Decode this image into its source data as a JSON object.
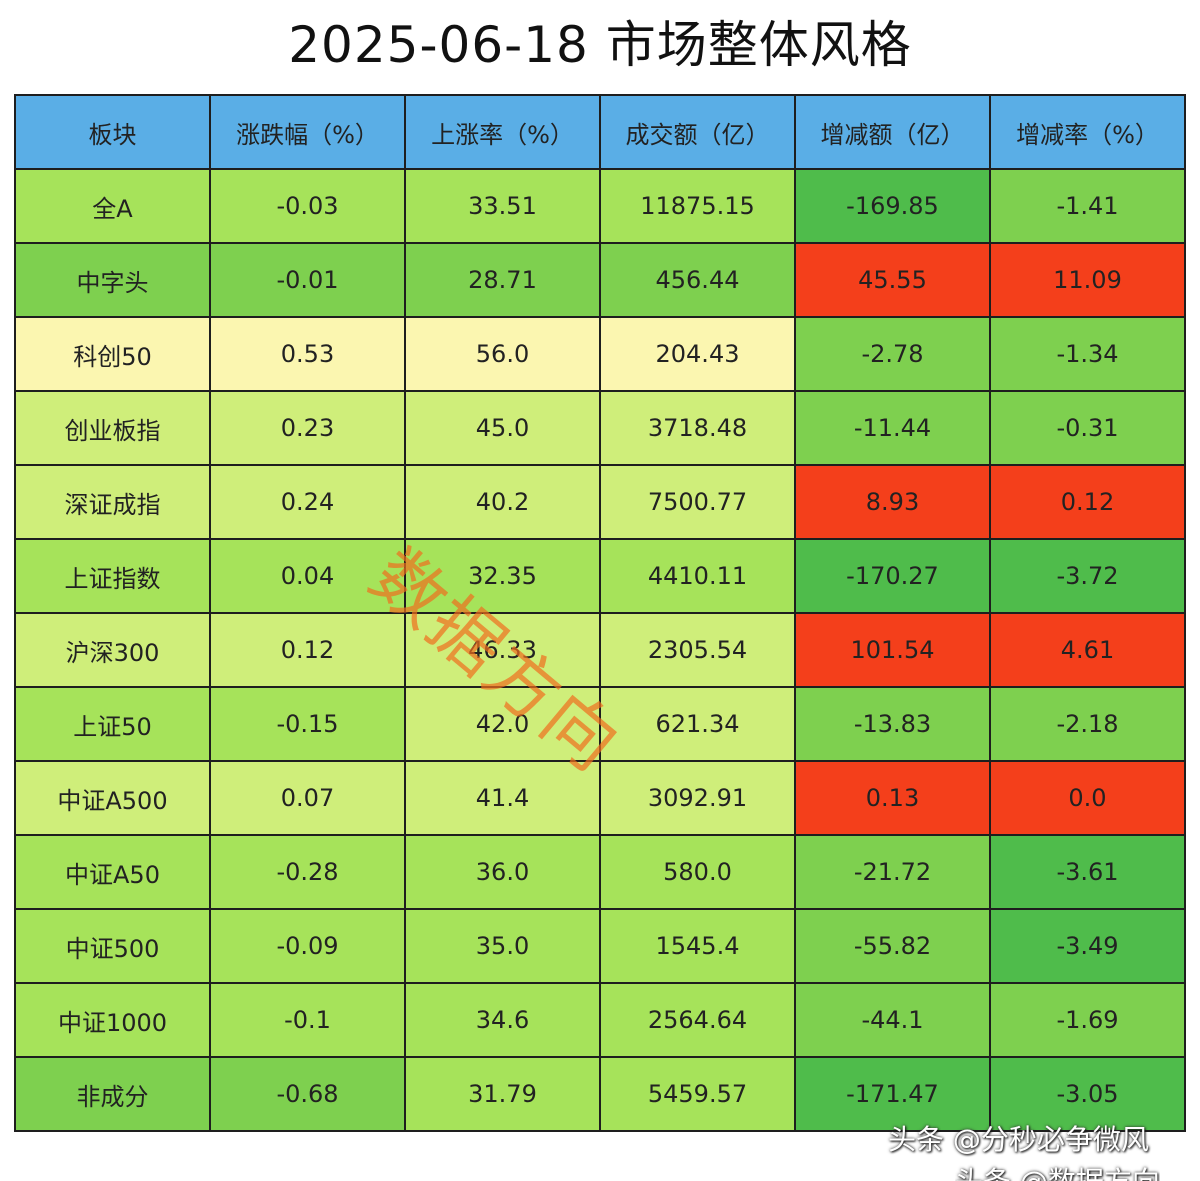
{
  "title": "2025-06-18 市场整体风格",
  "table": {
    "headers": [
      "板块",
      "涨跌幅（%）",
      "上涨率（%）",
      "成交额（亿）",
      "增减额（亿）",
      "增减率（%）"
    ],
    "rows": [
      {
        "cells": [
          "全A",
          "-0.03",
          "33.51",
          "11875.15",
          "-169.85",
          "-1.41"
        ],
        "colors": [
          "lgreen",
          "lgreen",
          "lgreen",
          "lgreen",
          "dgreen",
          "mgreen"
        ]
      },
      {
        "cells": [
          "中字头",
          "-0.01",
          "28.71",
          "456.44",
          "45.55",
          "11.09"
        ],
        "colors": [
          "mgreen",
          "mgreen",
          "mgreen",
          "mgreen",
          "red",
          "red"
        ]
      },
      {
        "cells": [
          "科创50",
          "0.53",
          "56.0",
          "204.43",
          "-2.78",
          "-1.34"
        ],
        "colors": [
          "yellow",
          "yellow",
          "yellow",
          "yellow",
          "mgreen",
          "mgreen"
        ]
      },
      {
        "cells": [
          "创业板指",
          "0.23",
          "45.0",
          "3718.48",
          "-11.44",
          "-0.31"
        ],
        "colors": [
          "ygreen",
          "ygreen",
          "ygreen",
          "ygreen",
          "mgreen",
          "mgreen"
        ]
      },
      {
        "cells": [
          "深证成指",
          "0.24",
          "40.2",
          "7500.77",
          "8.93",
          "0.12"
        ],
        "colors": [
          "ygreen",
          "ygreen",
          "ygreen",
          "ygreen",
          "red",
          "red"
        ]
      },
      {
        "cells": [
          "上证指数",
          "0.04",
          "32.35",
          "4410.11",
          "-170.27",
          "-3.72"
        ],
        "colors": [
          "lgreen",
          "lgreen",
          "lgreen",
          "lgreen",
          "dgreen",
          "dgreen"
        ]
      },
      {
        "cells": [
          "沪深300",
          "0.12",
          "46.33",
          "2305.54",
          "101.54",
          "4.61"
        ],
        "colors": [
          "ygreen",
          "ygreen",
          "ygreen",
          "ygreen",
          "red",
          "red"
        ]
      },
      {
        "cells": [
          "上证50",
          "-0.15",
          "42.0",
          "621.34",
          "-13.83",
          "-2.18"
        ],
        "colors": [
          "lgreen",
          "lgreen",
          "ygreen",
          "ygreen",
          "mgreen",
          "mgreen"
        ]
      },
      {
        "cells": [
          "中证A500",
          "0.07",
          "41.4",
          "3092.91",
          "0.13",
          "0.0"
        ],
        "colors": [
          "ygreen",
          "ygreen",
          "ygreen",
          "ygreen",
          "red",
          "red"
        ]
      },
      {
        "cells": [
          "中证A50",
          "-0.28",
          "36.0",
          "580.0",
          "-21.72",
          "-3.61"
        ],
        "colors": [
          "lgreen",
          "lgreen",
          "lgreen",
          "lgreen",
          "mgreen",
          "dgreen"
        ]
      },
      {
        "cells": [
          "中证500",
          "-0.09",
          "35.0",
          "1545.4",
          "-55.82",
          "-3.49"
        ],
        "colors": [
          "lgreen",
          "lgreen",
          "lgreen",
          "lgreen",
          "mgreen",
          "dgreen"
        ]
      },
      {
        "cells": [
          "中证1000",
          "-0.1",
          "34.6",
          "2564.64",
          "-44.1",
          "-1.69"
        ],
        "colors": [
          "lgreen",
          "lgreen",
          "lgreen",
          "lgreen",
          "mgreen",
          "mgreen"
        ]
      },
      {
        "cells": [
          "非成分",
          "-0.68",
          "31.79",
          "5459.57",
          "-171.47",
          "-3.05"
        ],
        "colors": [
          "mgreen",
          "mgreen",
          "lgreen",
          "lgreen",
          "dgreen",
          "dgreen"
        ]
      }
    ]
  },
  "watermark": "数据方向",
  "credits": [
    "头条 @分秒必争微风",
    "头条 @数据方向"
  ]
}
